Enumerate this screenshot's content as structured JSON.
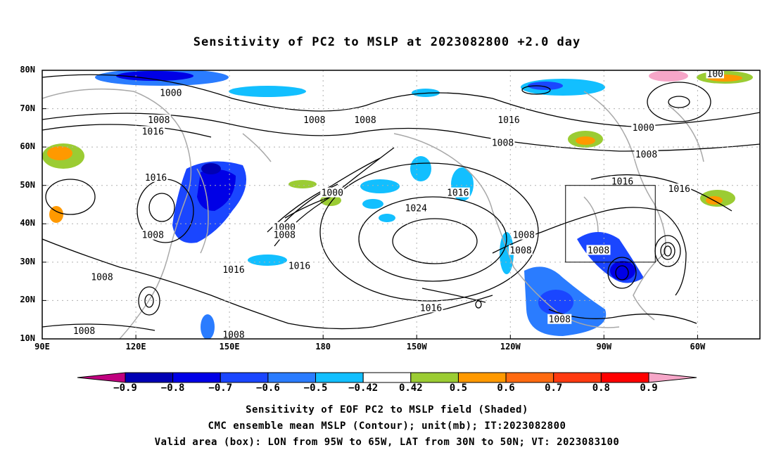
{
  "title": "Sensitivity of PC2 to MSLP at 2023082800 +2.0 day",
  "map": {
    "lat_labels": [
      "80N",
      "70N",
      "60N",
      "50N",
      "40N",
      "30N",
      "20N",
      "10N"
    ],
    "lon_labels": [
      "90E",
      "120E",
      "150E",
      "180",
      "150W",
      "120W",
      "90W",
      "60W"
    ],
    "contour_unit": "mb",
    "contour_labels": [
      {
        "text": "1000",
        "lon": 133,
        "lat": 74
      },
      {
        "text": "1008",
        "lon": 129,
        "lat": 67
      },
      {
        "text": "1016",
        "lon": 127,
        "lat": 64
      },
      {
        "text": "1008",
        "lon": 181,
        "lat": 67
      },
      {
        "text": "1008",
        "lon": 198,
        "lat": 67
      },
      {
        "text": "1016",
        "lon": 246,
        "lat": 67
      },
      {
        "text": "1000",
        "lon": 291,
        "lat": 65
      },
      {
        "text": "1008",
        "lon": 244,
        "lat": 61
      },
      {
        "text": "1008",
        "lon": 292,
        "lat": 58
      },
      {
        "text": "1016",
        "lon": 128,
        "lat": 52
      },
      {
        "text": "1000",
        "lon": 187,
        "lat": 48
      },
      {
        "text": "1016",
        "lon": 229,
        "lat": 48
      },
      {
        "text": "1016",
        "lon": 284,
        "lat": 51
      },
      {
        "text": "1016",
        "lon": 303,
        "lat": 49
      },
      {
        "text": "1024",
        "lon": 215,
        "lat": 44
      },
      {
        "text": "1000",
        "lon": 171,
        "lat": 39
      },
      {
        "text": "1008",
        "lon": 171,
        "lat": 37
      },
      {
        "text": "1008",
        "lon": 127,
        "lat": 37
      },
      {
        "text": "1008",
        "lon": 251,
        "lat": 37
      },
      {
        "text": "1008",
        "lon": 250,
        "lat": 33
      },
      {
        "text": "1008",
        "lon": 276,
        "lat": 33
      },
      {
        "text": "1016",
        "lon": 154,
        "lat": 28
      },
      {
        "text": "1016",
        "lon": 176,
        "lat": 29
      },
      {
        "text": "1008",
        "lon": 110,
        "lat": 26
      },
      {
        "text": "1016",
        "lon": 220,
        "lat": 18
      },
      {
        "text": "1008",
        "lon": 263,
        "lat": 15
      },
      {
        "text": "1008",
        "lon": 104,
        "lat": 12
      },
      {
        "text": "1008",
        "lon": 154,
        "lat": 11
      },
      {
        "text": "100",
        "lon": 315,
        "lat": 79
      }
    ],
    "valid_box": {
      "lon_min": -95,
      "lon_max": -65,
      "lat_min": 30,
      "lat_max": 50
    }
  },
  "colorbar": {
    "labels": [
      "−0.9",
      "−0.8",
      "−0.7",
      "−0.6",
      "−0.5",
      "−0.42",
      "0.42",
      "0.5",
      "0.6",
      "0.7",
      "0.8",
      "0.9"
    ],
    "colors": [
      "#c0007f",
      "#0000b4",
      "#0000e6",
      "#1a46ff",
      "#2a7cff",
      "#12bfff",
      "#ffffff",
      "#9bcc33",
      "#ff9900",
      "#ff6a10",
      "#ff3a10",
      "#ff0000",
      "#f6a6c8"
    ]
  },
  "caption": {
    "line1": "Sensitivity of EOF PC2 to MSLP field (Shaded)",
    "line2": "CMC ensemble mean MSLP (Contour); unit(mb); IT:2023082800",
    "line3": "Valid area (box): LON from 95W to 65W, LAT from 30N to 50N; VT: 2023083100"
  }
}
